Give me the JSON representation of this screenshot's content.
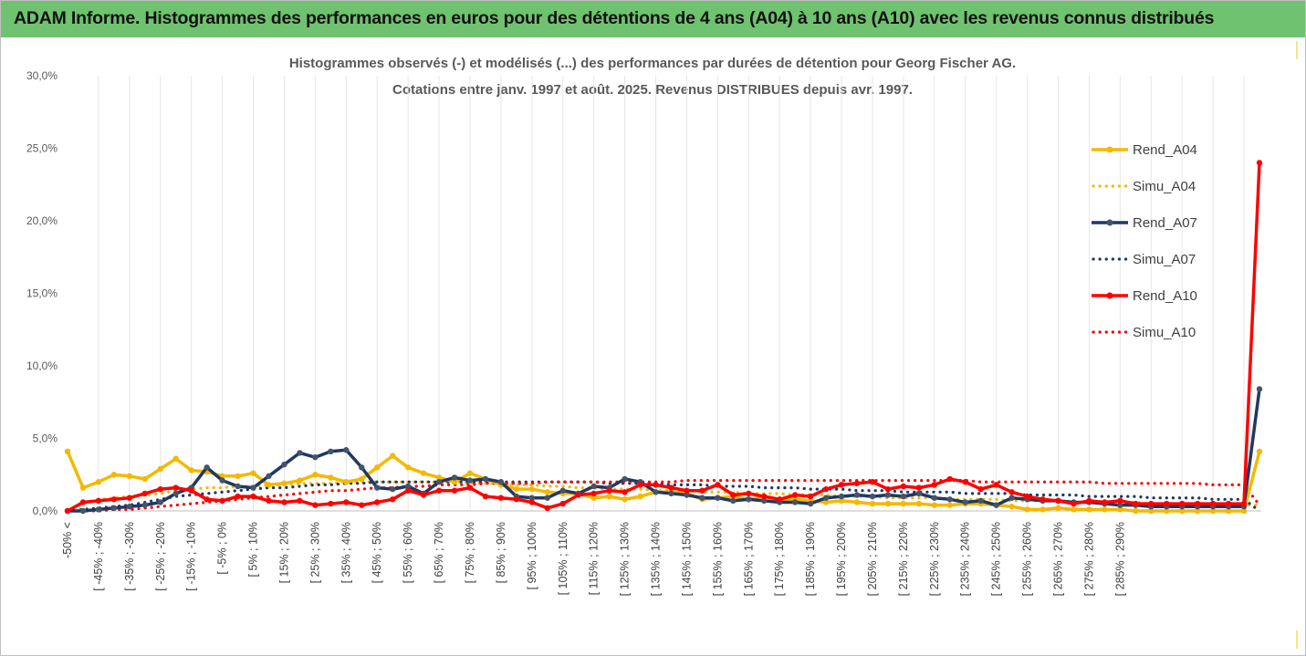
{
  "banner": {
    "title": "ADAM Informe. Histogrammes des performances en euros pour des détentions de 4 ans (A04) à 10 ans (A10) avec les revenus connus distribués"
  },
  "chart_data": {
    "type": "line",
    "title": "Histogrammes observés (-) et modélisés (...) des performances par durées de détention pour Georg Fischer AG.",
    "subtitle": "Cotations entre janv. 1997 et août. 2025. Revenus DISTRIBUES depuis avr. 1997.",
    "ylim": [
      0,
      30
    ],
    "yticks": [
      "0,0%",
      "5,0%",
      "10,0%",
      "15,0%",
      "20,0%",
      "25,0%",
      "30,0%"
    ],
    "grid": {
      "vertical": true,
      "horizontal": false
    },
    "legend_position": "right",
    "x_tick_labels": [
      "-50% <",
      "[ -45% ; -40%",
      "[ -35% ; -30%",
      "[ -25% ; -20%",
      "[ -15% ; -10%",
      "[ -5% ; 0%",
      "[ 5% ; 10%",
      "[ 15% ; 20%",
      "[ 25% ; 30%",
      "[ 35% ; 40%",
      "[ 45% ; 50%",
      "[ 55% ; 60%",
      "[ 65% ; 70%",
      "[ 75% ; 80%",
      "[ 85% ; 90%",
      "[ 95% ; 100%",
      "[ 105% ; 110%",
      "[ 115% ; 120%",
      "[ 125% ; 130%",
      "[ 135% ; 140%",
      "[ 145% ; 150%",
      "[ 155% ; 160%",
      "[ 165% ; 170%",
      "[ 175% ; 180%",
      "[ 185% ; 190%",
      "[ 195% ; 200%",
      "[ 205% ; 210%",
      "[ 215% ; 220%",
      "[ 225% ; 230%",
      "[ 235% ; 240%",
      "[ 245% ; 250%",
      "[ 255% ; 260%",
      "[ 265% ; 270%",
      "[ 275% ; 280%",
      "[ 285% ; 290%"
    ],
    "series": [
      {
        "name": "Rend_A04",
        "color": "#f5b800",
        "style": "solid",
        "values": [
          4.1,
          1.6,
          2.0,
          2.5,
          2.4,
          2.2,
          2.9,
          3.6,
          2.8,
          2.7,
          2.4,
          2.4,
          2.6,
          1.8,
          1.9,
          2.1,
          2.5,
          2.3,
          2.0,
          2.2,
          3.0,
          3.8,
          3.0,
          2.6,
          2.3,
          2.0,
          2.6,
          2.2,
          1.8,
          1.5,
          1.5,
          1.3,
          1.2,
          1.2,
          0.9,
          1.0,
          0.8,
          1.0,
          1.3,
          1.3,
          1.2,
          0.8,
          0.9,
          1.0,
          0.8,
          1.0,
          0.8,
          0.8,
          0.7,
          0.6,
          0.7,
          0.6,
          0.5,
          0.5,
          0.5,
          0.5,
          0.4,
          0.4,
          0.5,
          0.5,
          0.4,
          0.3,
          0.1,
          0.1,
          0.2,
          0.1,
          0.1,
          0.1,
          0.1,
          0.0,
          0.0,
          0.0,
          0.0,
          0.0,
          0.0,
          0.0,
          0.0,
          4.1
        ]
      },
      {
        "name": "Simu_A04",
        "color": "#f5b800",
        "style": "dotted",
        "values": [
          0.0,
          0.5,
          0.8,
          0.9,
          1.0,
          1.1,
          1.2,
          1.4,
          1.5,
          1.6,
          1.6,
          1.7,
          1.7,
          1.8,
          1.8,
          1.9,
          1.9,
          1.9,
          2.0,
          2.0,
          2.0,
          2.0,
          2.0,
          2.0,
          2.0,
          2.0,
          1.9,
          1.9,
          1.9,
          1.8,
          1.8,
          1.7,
          1.7,
          1.6,
          1.6,
          1.5,
          1.5,
          1.5,
          1.4,
          1.4,
          1.4,
          1.3,
          1.3,
          1.3,
          1.2,
          1.2,
          1.2,
          1.1,
          1.1,
          1.1,
          1.0,
          1.0,
          1.0,
          0.9,
          0.9,
          0.9,
          0.9,
          0.8,
          0.8,
          0.8,
          0.8,
          0.7,
          0.7,
          0.7,
          0.7,
          0.6,
          0.6,
          0.6,
          0.6,
          0.6,
          0.5,
          0.5,
          0.5,
          0.5,
          0.5,
          0.4,
          0.4,
          0.4
        ]
      },
      {
        "name": "Rend_A07",
        "color": "#1f3864",
        "style": "solid",
        "values": [
          0.0,
          0.0,
          0.1,
          0.2,
          0.3,
          0.4,
          0.6,
          1.2,
          1.6,
          3.0,
          2.1,
          1.7,
          1.6,
          2.4,
          3.2,
          4.0,
          3.7,
          4.1,
          4.2,
          3.0,
          1.6,
          1.5,
          1.7,
          1.2,
          2.0,
          2.3,
          2.1,
          2.2,
          2.0,
          1.0,
          0.9,
          0.9,
          1.4,
          1.2,
          1.7,
          1.6,
          2.2,
          2.0,
          1.3,
          1.2,
          1.1,
          0.9,
          0.9,
          0.7,
          0.8,
          0.7,
          0.6,
          0.6,
          0.5,
          0.9,
          1.0,
          1.1,
          1.0,
          1.1,
          1.0,
          1.2,
          0.9,
          0.8,
          0.6,
          0.7,
          0.4,
          0.9,
          0.8,
          0.7,
          0.7,
          0.6,
          0.6,
          0.5,
          0.4,
          0.4,
          0.3,
          0.3,
          0.3,
          0.3,
          0.3,
          0.3,
          0.3,
          8.4
        ]
      },
      {
        "name": "Simu_A07",
        "color": "#1f3864",
        "style": "dotted",
        "values": [
          0.0,
          0.1,
          0.2,
          0.3,
          0.4,
          0.6,
          0.8,
          1.0,
          1.1,
          1.2,
          1.3,
          1.4,
          1.5,
          1.6,
          1.6,
          1.7,
          1.8,
          1.8,
          1.9,
          1.9,
          2.0,
          2.0,
          2.0,
          2.0,
          2.0,
          2.0,
          2.0,
          2.0,
          2.0,
          2.0,
          2.0,
          2.0,
          2.0,
          2.0,
          2.0,
          1.9,
          1.9,
          1.9,
          1.9,
          1.8,
          1.8,
          1.8,
          1.7,
          1.7,
          1.7,
          1.6,
          1.6,
          1.6,
          1.5,
          1.5,
          1.5,
          1.4,
          1.4,
          1.4,
          1.3,
          1.3,
          1.3,
          1.3,
          1.2,
          1.2,
          1.2,
          1.2,
          1.1,
          1.1,
          1.1,
          1.1,
          1.0,
          1.0,
          1.0,
          1.0,
          0.9,
          0.9,
          0.9,
          0.9,
          0.8,
          0.8,
          0.8,
          0.0
        ]
      },
      {
        "name": "Rend_A10",
        "color": "#ff0000",
        "style": "solid",
        "values": [
          0.0,
          0.6,
          0.7,
          0.8,
          0.9,
          1.2,
          1.5,
          1.6,
          1.4,
          0.8,
          0.7,
          1.0,
          1.0,
          0.7,
          0.6,
          0.7,
          0.4,
          0.5,
          0.6,
          0.4,
          0.6,
          0.8,
          1.4,
          1.1,
          1.4,
          1.4,
          1.6,
          1.0,
          0.9,
          0.8,
          0.6,
          0.2,
          0.5,
          1.1,
          1.2,
          1.4,
          1.3,
          1.8,
          1.8,
          1.6,
          1.4,
          1.4,
          1.8,
          1.1,
          1.2,
          1.0,
          0.8,
          1.1,
          1.0,
          1.5,
          1.8,
          1.9,
          2.0,
          1.5,
          1.7,
          1.6,
          1.8,
          2.2,
          2.0,
          1.5,
          1.8,
          1.3,
          1.0,
          0.8,
          0.7,
          0.5,
          0.7,
          0.6,
          0.7,
          0.5,
          0.5,
          0.5,
          0.5,
          0.5,
          0.5,
          0.5,
          0.5,
          24.0
        ]
      },
      {
        "name": "Simu_A10",
        "color": "#ff0000",
        "style": "dotted",
        "values": [
          0.0,
          0.0,
          0.0,
          0.1,
          0.1,
          0.2,
          0.3,
          0.4,
          0.5,
          0.6,
          0.7,
          0.8,
          0.9,
          1.0,
          1.1,
          1.2,
          1.3,
          1.4,
          1.4,
          1.5,
          1.6,
          1.6,
          1.7,
          1.7,
          1.8,
          1.8,
          1.8,
          1.9,
          1.9,
          1.9,
          1.9,
          2.0,
          2.0,
          2.0,
          2.0,
          2.0,
          2.0,
          2.0,
          2.0,
          2.0,
          2.1,
          2.1,
          2.1,
          2.1,
          2.1,
          2.1,
          2.1,
          2.1,
          2.1,
          2.1,
          2.1,
          2.1,
          2.1,
          2.1,
          2.1,
          2.1,
          2.1,
          2.1,
          2.1,
          2.0,
          2.0,
          2.0,
          2.0,
          2.0,
          2.0,
          2.0,
          2.0,
          1.9,
          1.9,
          1.9,
          1.9,
          1.9,
          1.9,
          1.9,
          1.8,
          1.8,
          1.8,
          0.4
        ]
      }
    ]
  }
}
